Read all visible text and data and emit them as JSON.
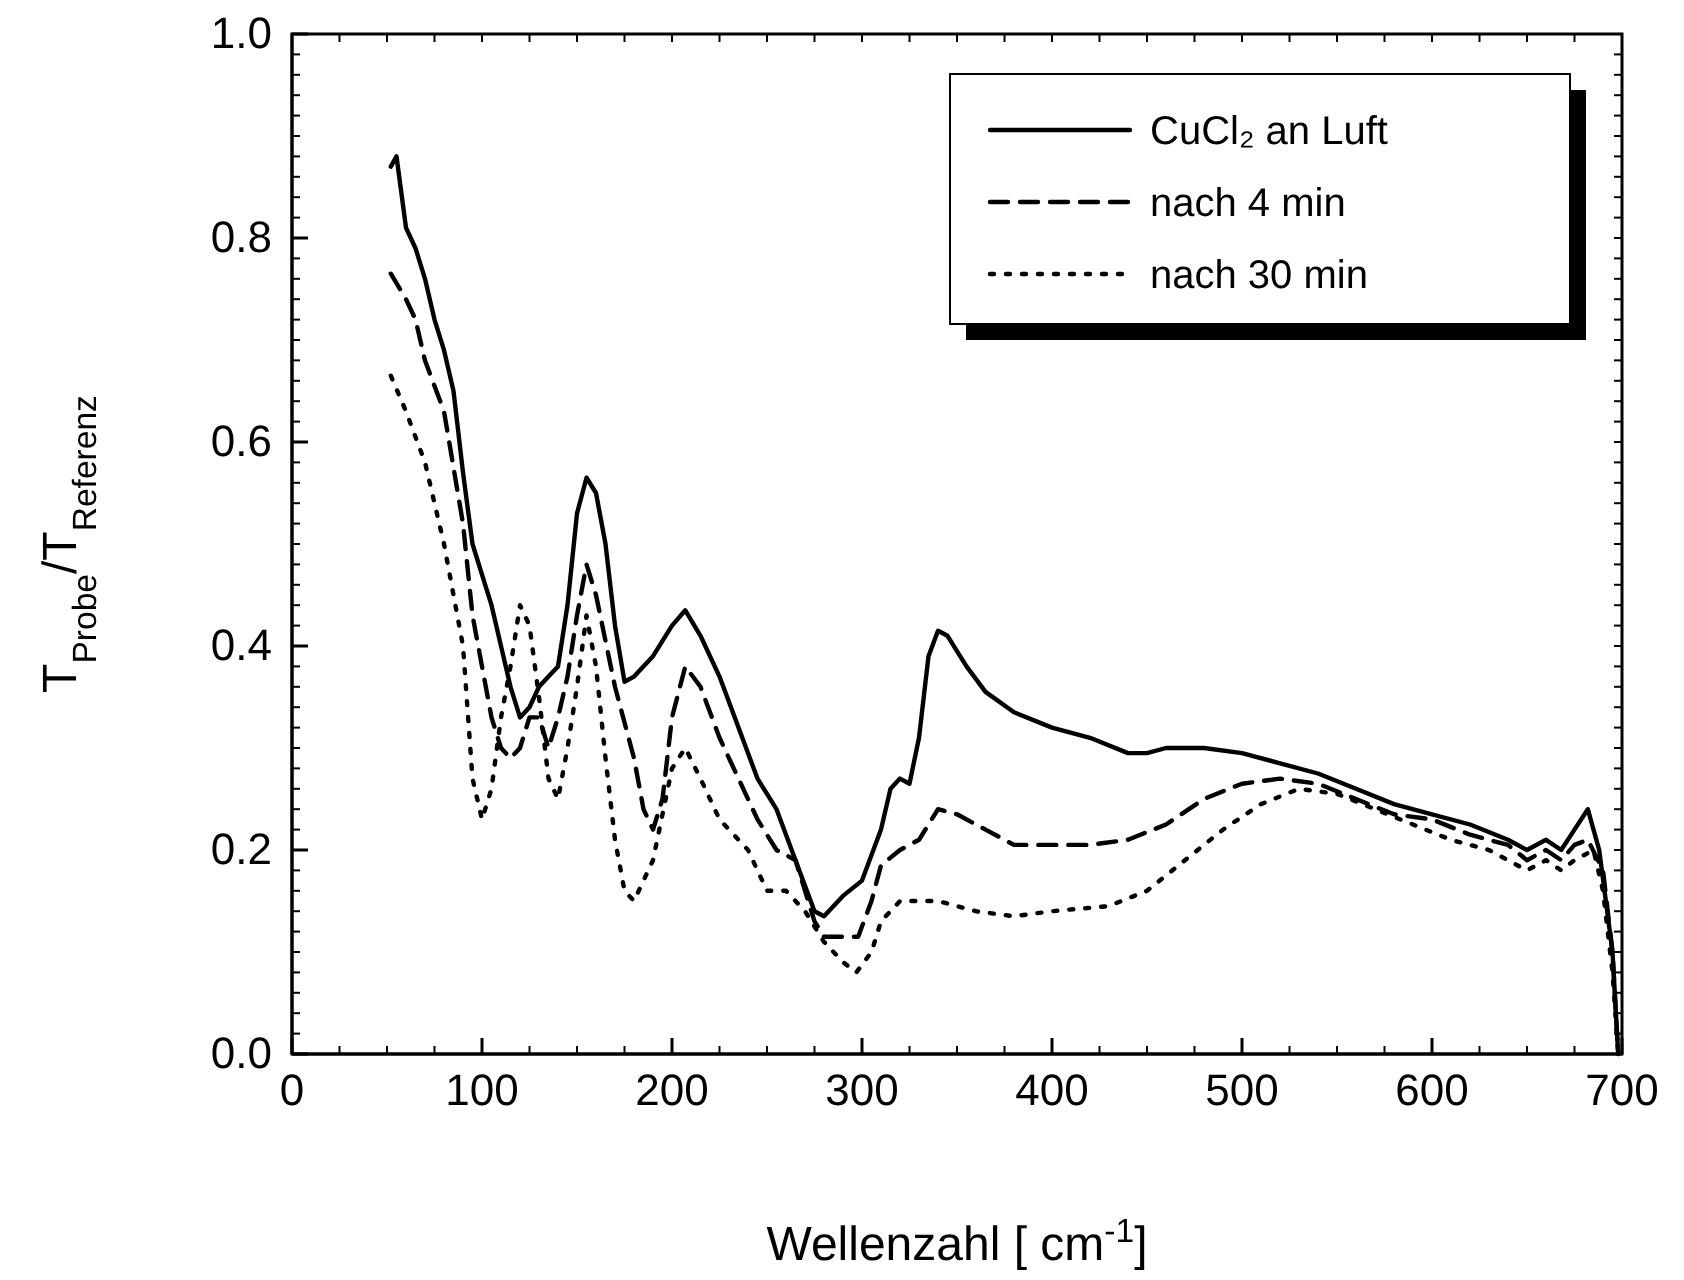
{
  "chart_data": {
    "type": "line",
    "xlabel": "Wellenzahl [ cm$^{-1}$]",
    "ylabel": "T$_{Probe}$/T$_{Referenz}$",
    "xlim": [
      0,
      700
    ],
    "xticks": [
      0,
      100,
      200,
      300,
      400,
      500,
      600,
      700
    ],
    "ylim": [
      0,
      1
    ],
    "yticks": [
      {
        "value": 0,
        "label": "0.0"
      },
      {
        "value": 0.2,
        "label": "0.2"
      },
      {
        "value": 0.4,
        "label": "0.4"
      },
      {
        "value": 0.6,
        "label": "0.6"
      },
      {
        "value": 0.8,
        "label": "0.8"
      },
      {
        "value": 1,
        "label": "1.0"
      }
    ],
    "grid": false,
    "legend": "top right",
    "marker": "none",
    "series": [
      {
        "name": "CuCl₂ an Luft",
        "color": "#000000",
        "line_style": "solid",
        "x": [
          52,
          55,
          60,
          65,
          70,
          75,
          80,
          85,
          90,
          95,
          100,
          105,
          110,
          115,
          120,
          125,
          130,
          135,
          140,
          145,
          150,
          155,
          160,
          165,
          170,
          175,
          180,
          190,
          200,
          207,
          215,
          225,
          235,
          245,
          255,
          265,
          275,
          280,
          290,
          300,
          310,
          315,
          320,
          325,
          330,
          335,
          340,
          345,
          355,
          365,
          380,
          400,
          420,
          440,
          450,
          460,
          480,
          500,
          520,
          540,
          560,
          580,
          600,
          620,
          640,
          650,
          660,
          668,
          675,
          682,
          688,
          695,
          698
        ],
        "values": [
          0.87,
          0.88,
          0.81,
          0.79,
          0.76,
          0.72,
          0.69,
          0.65,
          0.57,
          0.5,
          0.47,
          0.44,
          0.4,
          0.36,
          0.33,
          0.34,
          0.36,
          0.37,
          0.38,
          0.44,
          0.53,
          0.565,
          0.55,
          0.5,
          0.42,
          0.365,
          0.37,
          0.39,
          0.42,
          0.435,
          0.41,
          0.37,
          0.32,
          0.27,
          0.24,
          0.19,
          0.14,
          0.135,
          0.155,
          0.17,
          0.22,
          0.26,
          0.27,
          0.265,
          0.31,
          0.39,
          0.415,
          0.41,
          0.38,
          0.355,
          0.335,
          0.32,
          0.31,
          0.295,
          0.295,
          0.3,
          0.3,
          0.295,
          0.285,
          0.275,
          0.26,
          0.245,
          0.235,
          0.225,
          0.21,
          0.2,
          0.21,
          0.2,
          0.22,
          0.24,
          0.2,
          0.1,
          0
        ]
      },
      {
        "name": "nach 4 min",
        "color": "#000000",
        "line_style": "dashed",
        "x": [
          52,
          60,
          65,
          70,
          80,
          90,
          95,
          100,
          105,
          110,
          115,
          120,
          125,
          130,
          135,
          140,
          145,
          150,
          155,
          160,
          170,
          180,
          185,
          190,
          195,
          200,
          207,
          215,
          225,
          235,
          245,
          255,
          265,
          275,
          280,
          290,
          298,
          305,
          310,
          320,
          330,
          340,
          350,
          365,
          380,
          400,
          420,
          440,
          460,
          480,
          500,
          520,
          540,
          560,
          580,
          600,
          620,
          640,
          650,
          660,
          668,
          675,
          682,
          690,
          695,
          698
        ],
        "values": [
          0.765,
          0.74,
          0.72,
          0.68,
          0.63,
          0.52,
          0.43,
          0.38,
          0.33,
          0.3,
          0.29,
          0.3,
          0.33,
          0.33,
          0.3,
          0.33,
          0.37,
          0.43,
          0.48,
          0.45,
          0.36,
          0.29,
          0.24,
          0.22,
          0.25,
          0.33,
          0.38,
          0.36,
          0.31,
          0.27,
          0.23,
          0.2,
          0.19,
          0.13,
          0.115,
          0.115,
          0.115,
          0.15,
          0.185,
          0.2,
          0.21,
          0.24,
          0.235,
          0.22,
          0.205,
          0.205,
          0.205,
          0.21,
          0.225,
          0.25,
          0.265,
          0.27,
          0.265,
          0.25,
          0.235,
          0.23,
          0.215,
          0.205,
          0.19,
          0.2,
          0.19,
          0.205,
          0.21,
          0.18,
          0.1,
          0
        ]
      },
      {
        "name": "nach 30 min",
        "color": "#000000",
        "line_style": "dotted",
        "x": [
          52,
          60,
          70,
          80,
          90,
          95,
          100,
          105,
          110,
          115,
          120,
          125,
          130,
          135,
          140,
          145,
          150,
          155,
          160,
          165,
          170,
          175,
          180,
          190,
          200,
          207,
          215,
          225,
          240,
          250,
          260,
          270,
          280,
          290,
          297,
          305,
          310,
          320,
          340,
          360,
          380,
          400,
          430,
          450,
          470,
          490,
          510,
          530,
          550,
          570,
          590,
          610,
          630,
          650,
          660,
          668,
          675,
          685,
          690,
          695,
          698
        ],
        "values": [
          0.665,
          0.63,
          0.58,
          0.5,
          0.4,
          0.27,
          0.23,
          0.26,
          0.33,
          0.38,
          0.44,
          0.42,
          0.35,
          0.27,
          0.25,
          0.3,
          0.36,
          0.43,
          0.38,
          0.29,
          0.21,
          0.16,
          0.15,
          0.19,
          0.28,
          0.3,
          0.27,
          0.23,
          0.2,
          0.16,
          0.16,
          0.14,
          0.11,
          0.09,
          0.08,
          0.1,
          0.13,
          0.15,
          0.15,
          0.14,
          0.135,
          0.14,
          0.145,
          0.16,
          0.19,
          0.22,
          0.245,
          0.26,
          0.255,
          0.24,
          0.225,
          0.21,
          0.2,
          0.18,
          0.19,
          0.18,
          0.19,
          0.2,
          0.16,
          0.08,
          0
        ]
      }
    ]
  }
}
